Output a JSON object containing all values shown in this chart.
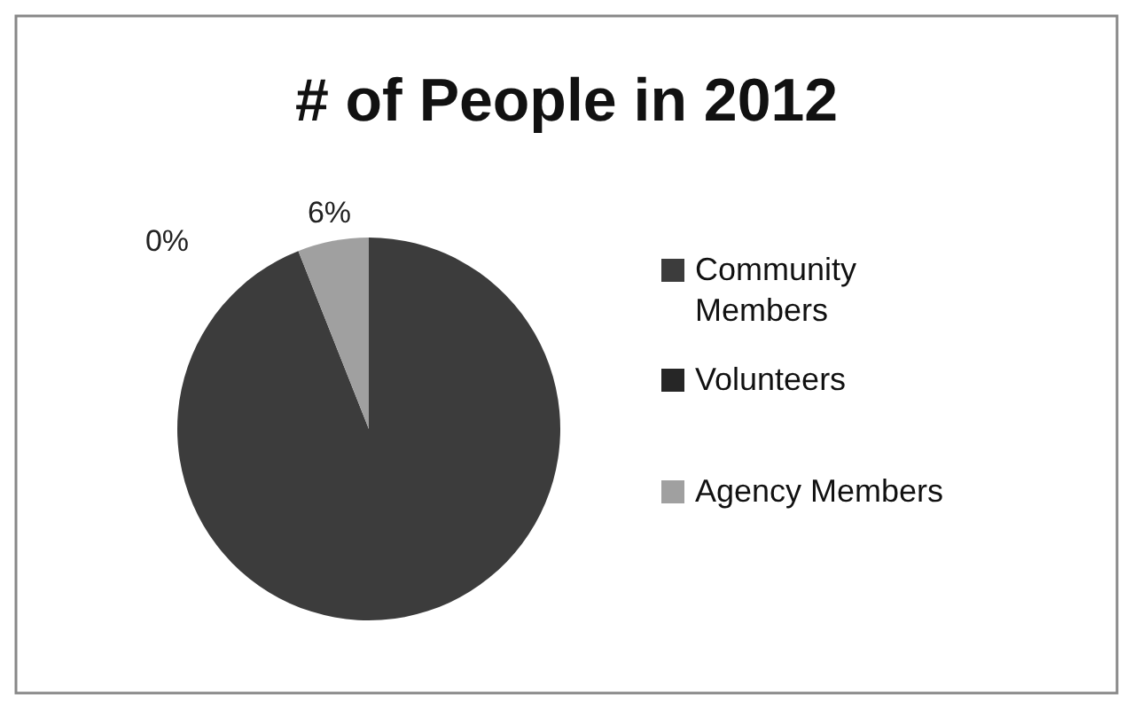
{
  "chart_data": {
    "type": "pie",
    "title": "# of People in 2012",
    "categories": [
      "Community Members",
      "Volunteers",
      "Agency Members"
    ],
    "values": [
      94,
      0,
      6
    ],
    "value_labels": [
      null,
      "0%",
      "6%"
    ],
    "colors": [
      "#3c3c3c",
      "#262626",
      "#a0a0a0"
    ],
    "legend": "right"
  }
}
